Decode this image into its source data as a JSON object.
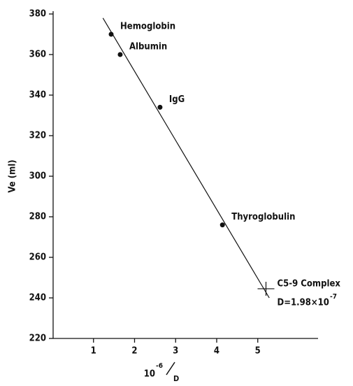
{
  "chart_data": {
    "type": "scatter",
    "ylabel": "Ve (ml)",
    "xlabel": {
      "base": "10",
      "exponent": "-6",
      "denominator": "D"
    },
    "xlim": [
      0,
      6.5
    ],
    "ylim": [
      220,
      380
    ],
    "xticks": [
      1,
      2,
      3,
      4,
      5
    ],
    "yticks": [
      220,
      240,
      260,
      280,
      300,
      320,
      340,
      360,
      380
    ],
    "color": "#111111",
    "points": [
      {
        "label": "Hemoglobin",
        "x": 1.43,
        "y": 370
      },
      {
        "label": "Albumin",
        "x": 1.65,
        "y": 360
      },
      {
        "label": "IgG",
        "x": 2.62,
        "y": 334
      },
      {
        "label": "Thyroglobulin",
        "x": 4.14,
        "y": 276
      },
      {
        "label": "C5-9 Complex",
        "x": 5.2,
        "y": 244.5,
        "marker": "cross"
      }
    ],
    "fit": {
      "x": [
        1.23,
        5.28
      ],
      "y": [
        378,
        240
      ]
    },
    "annotation": {
      "text": "D=1.98×10",
      "exponent": "-7"
    }
  }
}
